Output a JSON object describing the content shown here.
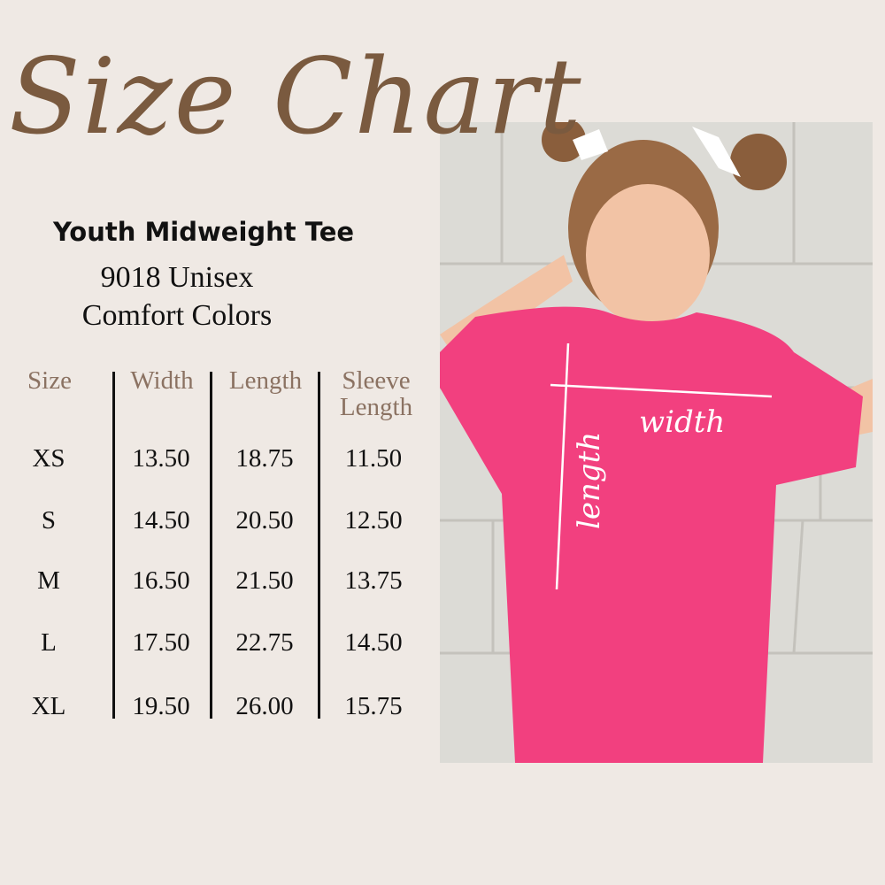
{
  "title": "Size Chart",
  "product": {
    "name": "Youth Midweight Tee",
    "model": "9018 Unisex",
    "brand": "Comfort Colors"
  },
  "table": {
    "headers": [
      "Size",
      "Width",
      "Length",
      "Sleeve Length"
    ],
    "rows": [
      [
        "XS",
        "13.50",
        "18.75",
        "11.50"
      ],
      [
        "S",
        "14.50",
        "20.50",
        "12.50"
      ],
      [
        "M",
        "16.50",
        "21.50",
        "13.75"
      ],
      [
        "L",
        "17.50",
        "22.75",
        "14.50"
      ],
      [
        "XL",
        "19.50",
        "26.00",
        "15.75"
      ]
    ]
  },
  "photo": {
    "width_label": "width",
    "length_label": "length",
    "shirt_color": "#f2407f"
  },
  "colors": {
    "title": "#7a5a3f",
    "header": "#8b7262",
    "background": "#efe9e4"
  }
}
